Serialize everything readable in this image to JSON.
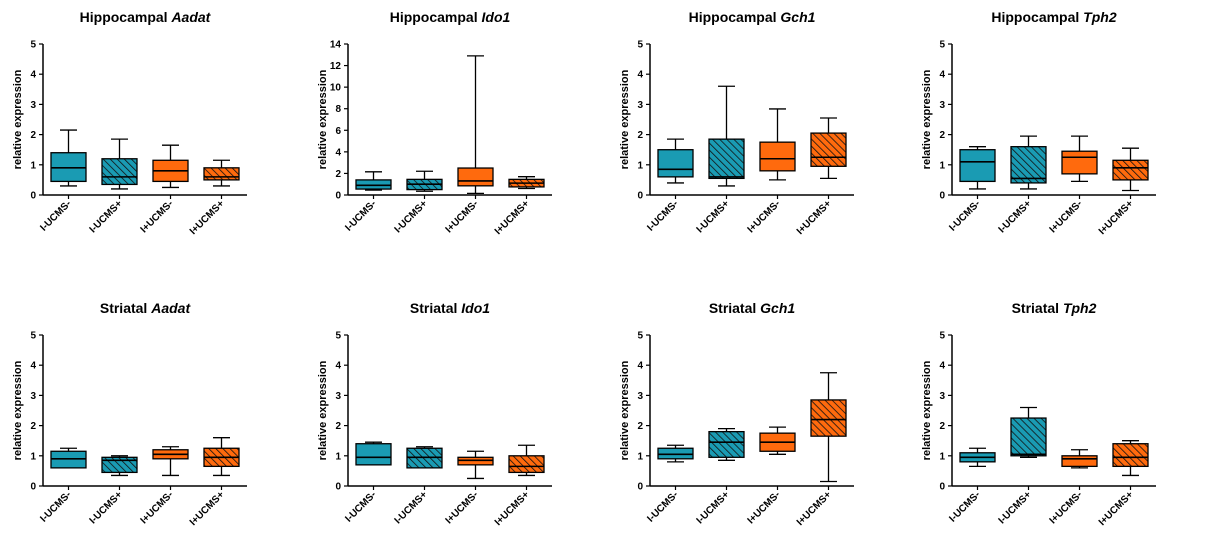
{
  "figure": {
    "ylabel": "relative expression"
  },
  "colors": {
    "blue": "#1a9bb3",
    "orange": "#ff6a0d",
    "stroke": "#000000"
  },
  "chart_data": [
    {
      "type": "box",
      "title_prefix": "Hippocampal",
      "title_gene": "Aadat",
      "ylabel": "relative expression",
      "ylim": [
        0,
        5
      ],
      "yticks": [
        0,
        1,
        2,
        3,
        4,
        5
      ],
      "categories": [
        "I-UCMS-",
        "I-UCMS+",
        "I+UCMS-",
        "I+UCMS+"
      ],
      "boxes": [
        {
          "min": 0.3,
          "q1": 0.45,
          "median": 0.9,
          "q3": 1.4,
          "max": 2.15,
          "color": "blue",
          "hatched": false
        },
        {
          "min": 0.2,
          "q1": 0.35,
          "median": 0.6,
          "q3": 1.2,
          "max": 1.85,
          "color": "blue",
          "hatched": true
        },
        {
          "min": 0.25,
          "q1": 0.45,
          "median": 0.8,
          "q3": 1.15,
          "max": 1.65,
          "color": "orange",
          "hatched": false
        },
        {
          "min": 0.3,
          "q1": 0.5,
          "median": 0.6,
          "q3": 0.9,
          "max": 1.15,
          "color": "orange",
          "hatched": true
        }
      ]
    },
    {
      "type": "box",
      "title_prefix": "Hippocampal",
      "title_gene": "Ido1",
      "ylabel": "relative expression",
      "ylim": [
        0,
        14
      ],
      "yticks": [
        0,
        2,
        4,
        6,
        8,
        10,
        12,
        14
      ],
      "categories": [
        "I-UCMS-",
        "I-UCMS+",
        "I+UCMS-",
        "I+UCMS+"
      ],
      "boxes": [
        {
          "min": 0.45,
          "q1": 0.55,
          "median": 0.9,
          "q3": 1.4,
          "max": 2.15,
          "color": "blue",
          "hatched": false
        },
        {
          "min": 0.35,
          "q1": 0.5,
          "median": 1.0,
          "q3": 1.45,
          "max": 2.2,
          "color": "blue",
          "hatched": true
        },
        {
          "min": 0.15,
          "q1": 0.85,
          "median": 1.3,
          "q3": 2.5,
          "max": 12.9,
          "color": "orange",
          "hatched": false
        },
        {
          "min": 0.6,
          "q1": 0.75,
          "median": 1.1,
          "q3": 1.45,
          "max": 1.7,
          "color": "orange",
          "hatched": true
        }
      ]
    },
    {
      "type": "box",
      "title_prefix": "Hippocampal",
      "title_gene": "Gch1",
      "ylabel": "relative expression",
      "ylim": [
        0,
        5
      ],
      "yticks": [
        0,
        1,
        2,
        3,
        4,
        5
      ],
      "categories": [
        "I-UCMS-",
        "I-UCMS+",
        "I+UCMS-",
        "I+UCMS+"
      ],
      "boxes": [
        {
          "min": 0.4,
          "q1": 0.6,
          "median": 0.85,
          "q3": 1.5,
          "max": 1.85,
          "color": "blue",
          "hatched": false
        },
        {
          "min": 0.3,
          "q1": 0.55,
          "median": 0.6,
          "q3": 1.85,
          "max": 3.6,
          "color": "blue",
          "hatched": true
        },
        {
          "min": 0.5,
          "q1": 0.8,
          "median": 1.2,
          "q3": 1.75,
          "max": 2.85,
          "color": "orange",
          "hatched": false
        },
        {
          "min": 0.55,
          "q1": 0.95,
          "median": 1.25,
          "q3": 2.05,
          "max": 2.55,
          "color": "orange",
          "hatched": true
        }
      ]
    },
    {
      "type": "box",
      "title_prefix": "Hippocampal",
      "title_gene": "Tph2",
      "ylabel": "relative expression",
      "ylim": [
        0,
        5
      ],
      "yticks": [
        0,
        1,
        2,
        3,
        4,
        5
      ],
      "categories": [
        "I-UCMS-",
        "I-UCMS+",
        "I+UCMS-",
        "I+UCMS+"
      ],
      "boxes": [
        {
          "min": 0.2,
          "q1": 0.45,
          "median": 1.1,
          "q3": 1.5,
          "max": 1.6,
          "color": "blue",
          "hatched": false
        },
        {
          "min": 0.2,
          "q1": 0.4,
          "median": 0.55,
          "q3": 1.6,
          "max": 1.95,
          "color": "blue",
          "hatched": true
        },
        {
          "min": 0.45,
          "q1": 0.7,
          "median": 1.25,
          "q3": 1.45,
          "max": 1.95,
          "color": "orange",
          "hatched": false
        },
        {
          "min": 0.15,
          "q1": 0.5,
          "median": 0.9,
          "q3": 1.15,
          "max": 1.55,
          "color": "orange",
          "hatched": true
        }
      ]
    },
    {
      "type": "box",
      "title_prefix": "Striatal",
      "title_gene": "Aadat",
      "ylabel": "relative expression",
      "ylim": [
        0,
        5
      ],
      "yticks": [
        0,
        1,
        2,
        3,
        4,
        5
      ],
      "categories": [
        "I-UCMS-",
        "I-UCMS+",
        "I+UCMS-",
        "I+UCMS+"
      ],
      "boxes": [
        {
          "min": 0.6,
          "q1": 0.6,
          "median": 0.9,
          "q3": 1.15,
          "max": 1.25,
          "color": "blue",
          "hatched": false
        },
        {
          "min": 0.35,
          "q1": 0.45,
          "median": 0.85,
          "q3": 0.95,
          "max": 1.0,
          "color": "blue",
          "hatched": true
        },
        {
          "min": 0.35,
          "q1": 0.9,
          "median": 1.05,
          "q3": 1.2,
          "max": 1.3,
          "color": "orange",
          "hatched": false
        },
        {
          "min": 0.35,
          "q1": 0.65,
          "median": 0.95,
          "q3": 1.25,
          "max": 1.6,
          "color": "orange",
          "hatched": true
        }
      ]
    },
    {
      "type": "box",
      "title_prefix": "Striatal",
      "title_gene": "Ido1",
      "ylabel": "relative expression",
      "ylim": [
        0,
        5
      ],
      "yticks": [
        0,
        1,
        2,
        3,
        4,
        5
      ],
      "categories": [
        "I-UCMS-",
        "I-UCMS+",
        "I+UCMS-",
        "I+UCMS+"
      ],
      "boxes": [
        {
          "min": 0.7,
          "q1": 0.7,
          "median": 0.95,
          "q3": 1.4,
          "max": 1.45,
          "color": "blue",
          "hatched": false
        },
        {
          "min": 0.6,
          "q1": 0.6,
          "median": 0.95,
          "q3": 1.25,
          "max": 1.3,
          "color": "blue",
          "hatched": true
        },
        {
          "min": 0.25,
          "q1": 0.7,
          "median": 0.85,
          "q3": 0.95,
          "max": 1.15,
          "color": "orange",
          "hatched": false
        },
        {
          "min": 0.35,
          "q1": 0.45,
          "median": 0.65,
          "q3": 1.0,
          "max": 1.35,
          "color": "orange",
          "hatched": true
        }
      ]
    },
    {
      "type": "box",
      "title_prefix": "Striatal",
      "title_gene": "Gch1",
      "ylabel": "relative expression",
      "ylim": [
        0,
        5
      ],
      "yticks": [
        0,
        1,
        2,
        3,
        4,
        5
      ],
      "categories": [
        "I-UCMS-",
        "I-UCMS+",
        "I+UCMS-",
        "I+UCMS+"
      ],
      "boxes": [
        {
          "min": 0.8,
          "q1": 0.9,
          "median": 1.05,
          "q3": 1.25,
          "max": 1.35,
          "color": "blue",
          "hatched": false
        },
        {
          "min": 0.85,
          "q1": 0.95,
          "median": 1.45,
          "q3": 1.8,
          "max": 1.9,
          "color": "blue",
          "hatched": true
        },
        {
          "min": 1.05,
          "q1": 1.15,
          "median": 1.45,
          "q3": 1.75,
          "max": 1.95,
          "color": "orange",
          "hatched": false
        },
        {
          "min": 0.15,
          "q1": 1.65,
          "median": 2.2,
          "q3": 2.85,
          "max": 3.75,
          "color": "orange",
          "hatched": true
        }
      ]
    },
    {
      "type": "box",
      "title_prefix": "Striatal",
      "title_gene": "Tph2",
      "ylabel": "relative expression",
      "ylim": [
        0,
        5
      ],
      "yticks": [
        0,
        1,
        2,
        3,
        4,
        5
      ],
      "categories": [
        "I-UCMS-",
        "I-UCMS+",
        "I+UCMS-",
        "I+UCMS+"
      ],
      "boxes": [
        {
          "min": 0.65,
          "q1": 0.8,
          "median": 0.95,
          "q3": 1.1,
          "max": 1.25,
          "color": "blue",
          "hatched": false
        },
        {
          "min": 0.95,
          "q1": 1.0,
          "median": 1.05,
          "q3": 2.25,
          "max": 2.6,
          "color": "blue",
          "hatched": true
        },
        {
          "min": 0.6,
          "q1": 0.65,
          "median": 0.9,
          "q3": 1.0,
          "max": 1.2,
          "color": "orange",
          "hatched": false
        },
        {
          "min": 0.35,
          "q1": 0.65,
          "median": 0.95,
          "q3": 1.4,
          "max": 1.5,
          "color": "orange",
          "hatched": true
        }
      ]
    }
  ]
}
